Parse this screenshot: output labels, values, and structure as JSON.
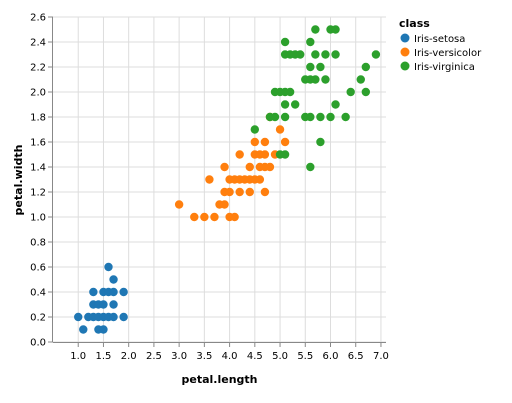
{
  "chart_data": {
    "type": "scatter",
    "xlabel": "petal.length",
    "ylabel": "petal.width",
    "xlim": [
      0.5,
      7.1
    ],
    "ylim": [
      0,
      2.6
    ],
    "x_ticks": [
      1.0,
      1.5,
      2.0,
      2.5,
      3.0,
      3.5,
      4.0,
      4.5,
      5.0,
      5.5,
      6.0,
      6.5,
      7.0
    ],
    "y_ticks": [
      0.0,
      0.2,
      0.4,
      0.6,
      0.8,
      1.0,
      1.2,
      1.4,
      1.6,
      1.8,
      2.0,
      2.2,
      2.4,
      2.6
    ],
    "x_tick_labels": [
      "1.0",
      "1.5",
      "2.0",
      "2.5",
      "3.0",
      "3.5",
      "4.0",
      "4.5",
      "5.0",
      "5.5",
      "6.0",
      "6.5",
      "7.0"
    ],
    "y_tick_labels": [
      "0.0",
      "0.2",
      "0.4",
      "0.6",
      "0.8",
      "1.0",
      "1.2",
      "1.4",
      "1.6",
      "1.8",
      "2.0",
      "2.2",
      "2.4",
      "2.6"
    ],
    "grid": true,
    "legend": {
      "title": "class",
      "placement": "right"
    },
    "series": [
      {
        "name": "Iris-setosa",
        "color": "#1f77b4",
        "points": [
          [
            1.0,
            0.2
          ],
          [
            1.1,
            0.1
          ],
          [
            1.2,
            0.2
          ],
          [
            1.3,
            0.2
          ],
          [
            1.4,
            0.2
          ],
          [
            1.5,
            0.2
          ],
          [
            1.6,
            0.2
          ],
          [
            1.7,
            0.2
          ],
          [
            1.9,
            0.2
          ],
          [
            1.3,
            0.3
          ],
          [
            1.4,
            0.3
          ],
          [
            1.5,
            0.3
          ],
          [
            1.7,
            0.3
          ],
          [
            1.3,
            0.4
          ],
          [
            1.5,
            0.4
          ],
          [
            1.6,
            0.4
          ],
          [
            1.7,
            0.4
          ],
          [
            1.9,
            0.4
          ],
          [
            1.7,
            0.5
          ],
          [
            1.6,
            0.6
          ],
          [
            1.4,
            0.1
          ],
          [
            1.5,
            0.1
          ]
        ]
      },
      {
        "name": "Iris-versicolor",
        "color": "#ff7f0e",
        "points": [
          [
            3.0,
            1.1
          ],
          [
            3.3,
            1.0
          ],
          [
            3.5,
            1.0
          ],
          [
            3.7,
            1.0
          ],
          [
            4.0,
            1.0
          ],
          [
            4.1,
            1.0
          ],
          [
            3.8,
            1.1
          ],
          [
            3.9,
            1.1
          ],
          [
            3.9,
            1.2
          ],
          [
            4.0,
            1.2
          ],
          [
            4.2,
            1.2
          ],
          [
            4.4,
            1.2
          ],
          [
            4.7,
            1.2
          ],
          [
            3.6,
            1.3
          ],
          [
            4.0,
            1.3
          ],
          [
            4.1,
            1.3
          ],
          [
            4.2,
            1.3
          ],
          [
            4.3,
            1.3
          ],
          [
            4.4,
            1.3
          ],
          [
            4.5,
            1.3
          ],
          [
            4.6,
            1.3
          ],
          [
            3.9,
            1.4
          ],
          [
            4.4,
            1.4
          ],
          [
            4.6,
            1.4
          ],
          [
            4.7,
            1.4
          ],
          [
            4.8,
            1.4
          ],
          [
            4.5,
            1.5
          ],
          [
            4.6,
            1.5
          ],
          [
            4.7,
            1.5
          ],
          [
            4.9,
            1.5
          ],
          [
            4.5,
            1.6
          ],
          [
            4.7,
            1.6
          ],
          [
            5.1,
            1.6
          ],
          [
            5.0,
            1.7
          ],
          [
            4.8,
            1.8
          ],
          [
            4.2,
            1.5
          ]
        ]
      },
      {
        "name": "Iris-virginica",
        "color": "#2ca02c",
        "points": [
          [
            4.5,
            1.7
          ],
          [
            5.0,
            1.5
          ],
          [
            5.1,
            1.5
          ],
          [
            5.6,
            1.4
          ],
          [
            5.8,
            1.6
          ],
          [
            4.8,
            1.8
          ],
          [
            4.9,
            1.8
          ],
          [
            5.1,
            1.8
          ],
          [
            5.5,
            1.8
          ],
          [
            5.6,
            1.8
          ],
          [
            5.8,
            1.8
          ],
          [
            6.0,
            1.8
          ],
          [
            6.3,
            1.8
          ],
          [
            5.1,
            1.9
          ],
          [
            5.3,
            1.9
          ],
          [
            6.1,
            1.9
          ],
          [
            4.9,
            2.0
          ],
          [
            5.0,
            2.0
          ],
          [
            5.1,
            2.0
          ],
          [
            5.2,
            2.0
          ],
          [
            6.4,
            2.0
          ],
          [
            6.7,
            2.0
          ],
          [
            5.5,
            2.1
          ],
          [
            5.6,
            2.1
          ],
          [
            5.7,
            2.1
          ],
          [
            5.9,
            2.1
          ],
          [
            6.6,
            2.1
          ],
          [
            5.6,
            2.2
          ],
          [
            5.8,
            2.2
          ],
          [
            6.7,
            2.2
          ],
          [
            5.1,
            2.3
          ],
          [
            5.2,
            2.3
          ],
          [
            5.3,
            2.3
          ],
          [
            5.4,
            2.3
          ],
          [
            5.7,
            2.3
          ],
          [
            5.9,
            2.3
          ],
          [
            6.1,
            2.3
          ],
          [
            6.9,
            2.3
          ],
          [
            5.1,
            2.4
          ],
          [
            5.6,
            2.4
          ],
          [
            5.7,
            2.5
          ],
          [
            6.0,
            2.5
          ],
          [
            6.1,
            2.5
          ]
        ]
      }
    ]
  }
}
